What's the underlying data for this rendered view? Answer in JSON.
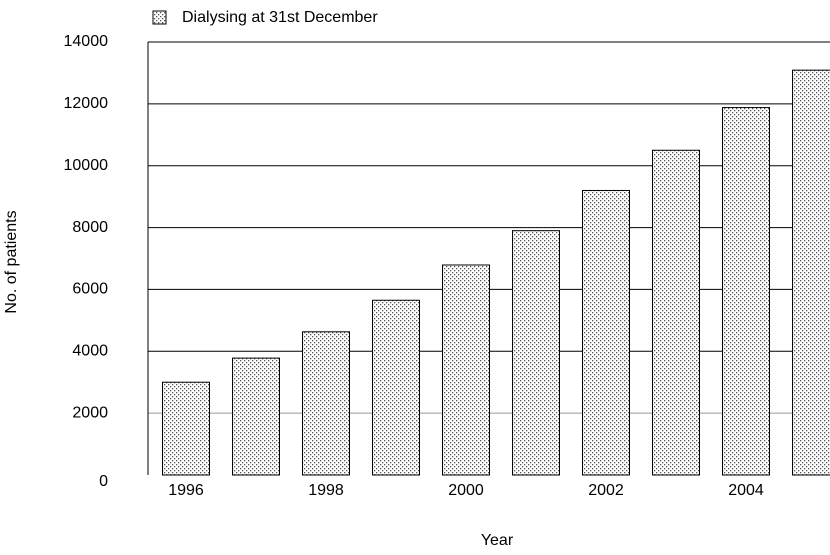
{
  "chart_data": {
    "type": "bar",
    "x_label": "Year",
    "y_label": "No. of patients",
    "categories": [
      "1996",
      null,
      "1998",
      null,
      "2000",
      null,
      "2002",
      null,
      "2004",
      null
    ],
    "series": [
      {
        "name": "Dialysing at 31st December",
        "color": "#555555",
        "values": [
          3000,
          3780,
          4630,
          5650,
          6790,
          7900,
          9200,
          10500,
          11880,
          13090
        ]
      }
    ],
    "ylim": [
      0,
      14000
    ],
    "yticks": [
      0,
      2000,
      4000,
      6000,
      8000,
      10000,
      12000,
      14000
    ],
    "grid": true,
    "legend": "top-left"
  }
}
